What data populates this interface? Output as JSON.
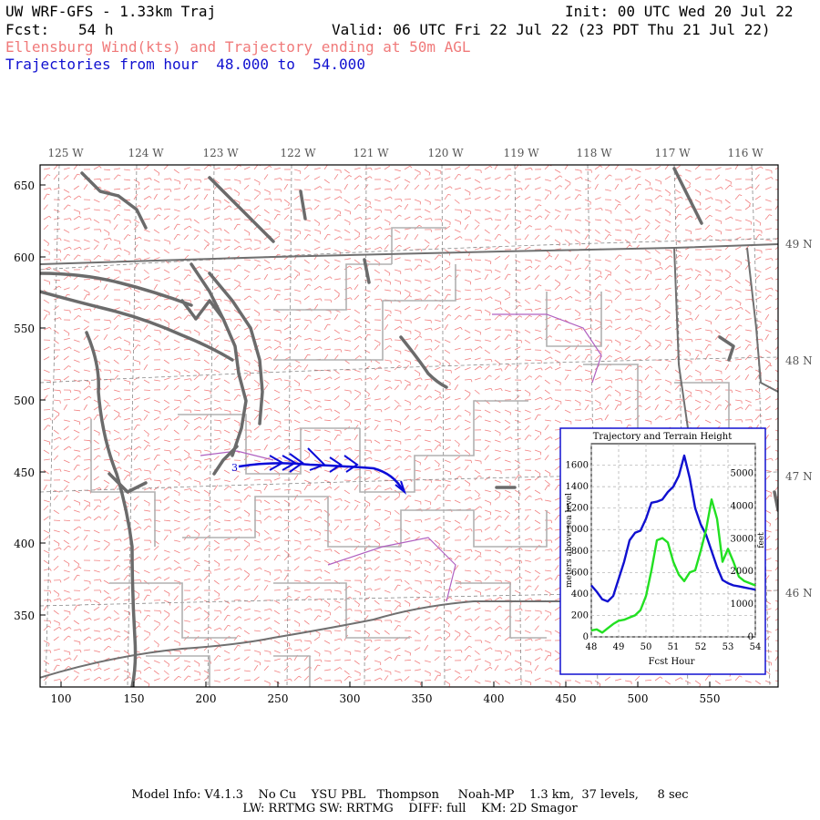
{
  "header": {
    "title": "UW WRF-GFS - 1.33km Traj",
    "init": "Init: 00 UTC Wed 20 Jul 22",
    "fcst_label": "Fcst:",
    "fcst_value": "54 h",
    "valid": "Valid: 06 UTC Fri 22 Jul 22 (23 PDT Thu 21 Jul 22)",
    "field_desc": "Ellensburg Wind(kts) and Trajectory ending at 50m AGL",
    "traj_range": "Trajectories from hour  48.000 to  54.000"
  },
  "map": {
    "lon_labels": [
      "125 W",
      "124 W",
      "123 W",
      "122 W",
      "121 W",
      "120 W",
      "119 W",
      "118 W",
      "117 W",
      "116 W"
    ],
    "lat_labels": [
      "49 N",
      "48 N",
      "47 N",
      "46 N"
    ],
    "x_ticks": [
      "100",
      "150",
      "200",
      "250",
      "300",
      "350",
      "400",
      "450",
      "500",
      "550"
    ],
    "y_ticks": [
      "650",
      "600",
      "550",
      "500",
      "450",
      "400",
      "350"
    ],
    "trajectory_start_marker": "3"
  },
  "inset": {
    "title": "Trajectory and Terrain Height",
    "xlabel": "Fcst Hour",
    "ylabel_left": "meters above sea level",
    "ylabel_right": "feet",
    "x_ticks": [
      "48",
      "49",
      "50",
      "51",
      "52",
      "53",
      "54"
    ],
    "y_left_ticks": [
      "0",
      "200",
      "400",
      "600",
      "800",
      "1000",
      "1200",
      "1400",
      "1600"
    ],
    "y_right_ticks": [
      "0",
      "1000",
      "2000",
      "3000",
      "4000",
      "5000"
    ],
    "trajectory_color": "#1010d0",
    "terrain_color": "#22e022"
  },
  "chart_data": {
    "type": "line",
    "title": "Trajectory and Terrain Height",
    "xlabel": "Fcst Hour",
    "ylabel": "meters above sea level",
    "xlim": [
      48,
      54
    ],
    "ylim": [
      0,
      1800
    ],
    "series": [
      {
        "x": [
          48.0,
          48.2,
          48.4,
          48.6,
          48.8,
          49.0,
          49.2,
          49.4,
          49.6,
          49.8,
          50.0,
          50.2,
          50.4,
          50.6,
          50.8,
          51.0,
          51.2,
          51.4,
          51.6,
          51.8,
          52.0,
          52.2,
          52.4,
          52.6,
          52.8,
          53.0,
          53.2,
          53.4,
          53.6,
          53.8,
          54.0
        ],
        "values": [
          480,
          420,
          350,
          330,
          380,
          540,
          700,
          900,
          970,
          990,
          1100,
          1250,
          1260,
          1280,
          1350,
          1400,
          1500,
          1690,
          1480,
          1200,
          1050,
          950,
          800,
          650,
          530,
          500,
          480,
          470,
          460,
          450,
          440
        ]
      },
      {
        "x": [
          48.0,
          48.2,
          48.4,
          48.6,
          48.8,
          49.0,
          49.2,
          49.4,
          49.6,
          49.8,
          50.0,
          50.2,
          50.4,
          50.6,
          50.8,
          51.0,
          51.2,
          51.4,
          51.6,
          51.8,
          52.0,
          52.2,
          52.4,
          52.6,
          52.8,
          53.0,
          53.2,
          53.4,
          53.6,
          53.8,
          54.0
        ],
        "values": [
          60,
          70,
          40,
          80,
          120,
          150,
          160,
          180,
          200,
          250,
          380,
          620,
          900,
          920,
          880,
          700,
          580,
          520,
          600,
          620,
          800,
          1000,
          1280,
          1100,
          700,
          820,
          700,
          560,
          520,
          500,
          480
        ]
      }
    ]
  }
}
